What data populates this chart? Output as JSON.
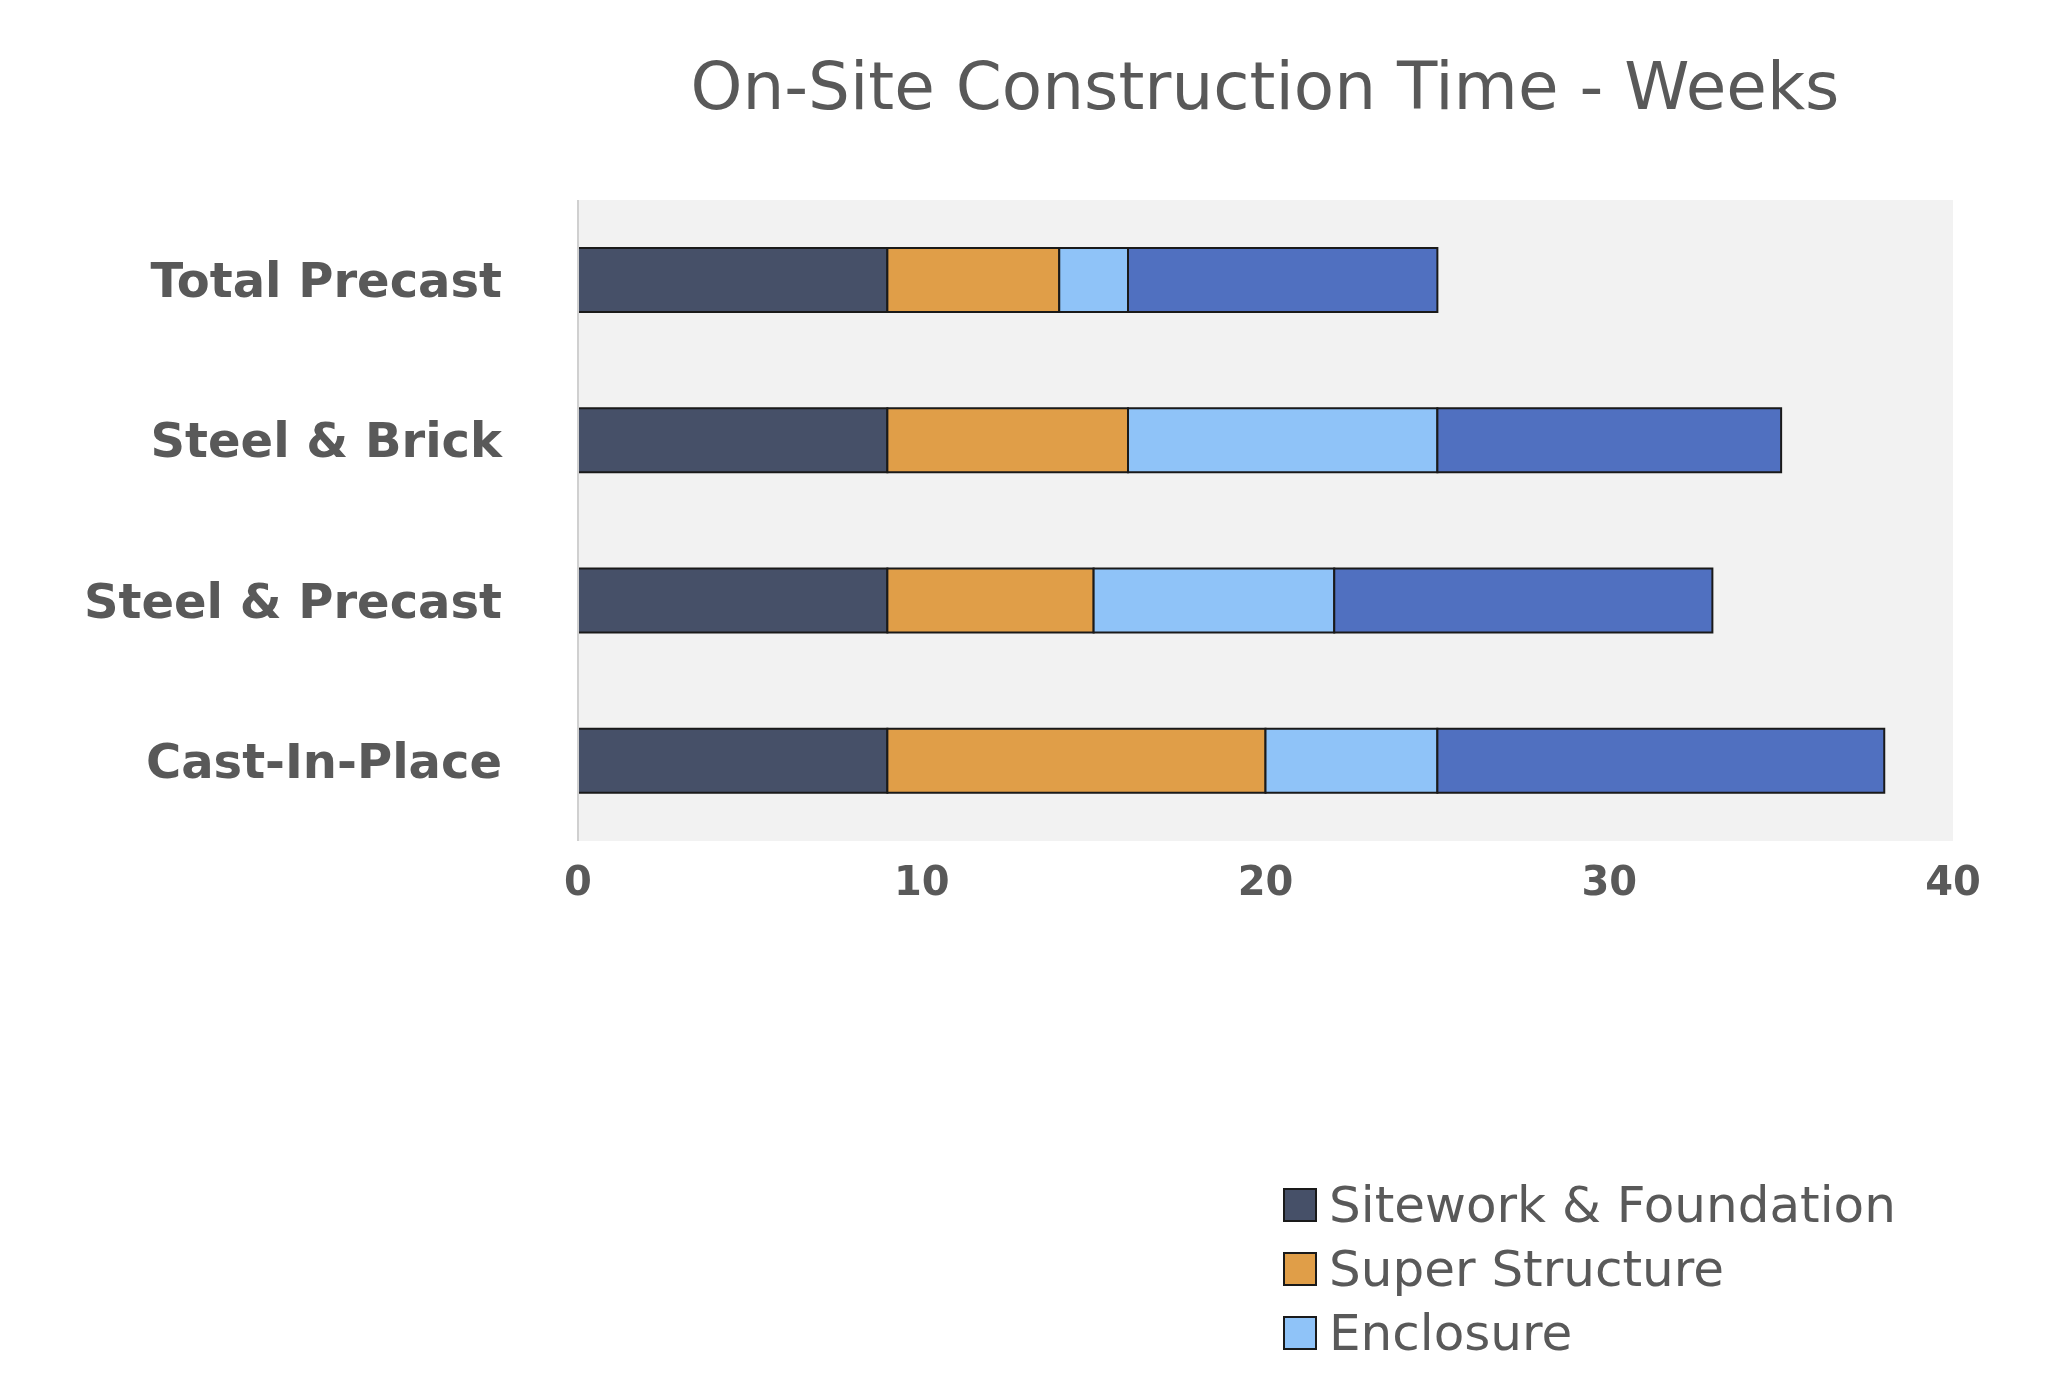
{
  "chart_data": {
    "type": "bar",
    "orientation": "horizontal",
    "stacked": true,
    "title": "On-Site Construction Time - Weeks",
    "categories": [
      "Total Precast",
      "Steel & Brick",
      "Steel & Precast",
      "Cast-In-Place"
    ],
    "series": [
      {
        "name": "Sitework & Foundation",
        "color": "#465068",
        "values": [
          9,
          9,
          9,
          9
        ]
      },
      {
        "name": "Super Structure",
        "color": "#e09e48",
        "values": [
          5,
          7,
          6,
          11
        ]
      },
      {
        "name": "Enclosure",
        "color": "#8fc3f8",
        "values": [
          2,
          9,
          7,
          5
        ]
      },
      {
        "color": "#5070c0",
        "values": [
          9,
          10,
          11,
          13
        ]
      }
    ],
    "xlim": [
      0,
      40
    ],
    "xticks": [
      0,
      10,
      20,
      30,
      40
    ],
    "grid": false,
    "legend": "bottom right"
  }
}
